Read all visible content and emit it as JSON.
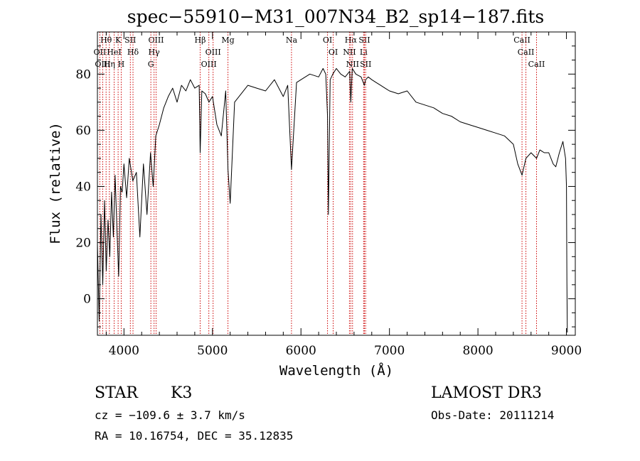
{
  "chart_data": {
    "type": "line",
    "title": "spec−55910−M31_007N34_B2_sp14−187.fits",
    "xlabel": "Wavelength (Å)",
    "ylabel": "Flux (relative)",
    "xlim": [
      3700,
      9100
    ],
    "ylim": [
      -13,
      95
    ],
    "x_ticks": [
      4000,
      5000,
      6000,
      7000,
      8000,
      9000
    ],
    "y_ticks": [
      0,
      20,
      40,
      60,
      80
    ],
    "grid": false,
    "line_color": "#000000",
    "marker_color": "#cc0000",
    "series": [
      {
        "x": [
          3700,
          3720,
          3740,
          3760,
          3780,
          3800,
          3820,
          3840,
          3860,
          3880,
          3900,
          3920,
          3940,
          3960,
          3980,
          4000,
          4030,
          4060,
          4100,
          4140,
          4180,
          4220,
          4260,
          4300,
          4330,
          4360,
          4400,
          4450,
          4500,
          4550,
          4600,
          4650,
          4700,
          4750,
          4800,
          4850,
          4861,
          4880,
          4920,
          4960,
          5000,
          5050,
          5100,
          5150,
          5175,
          5200,
          5250,
          5300,
          5400,
          5500,
          5600,
          5700,
          5800,
          5850,
          5893,
          5950,
          6000,
          6100,
          6200,
          6250,
          6280,
          6300,
          6310,
          6330,
          6360,
          6400,
          6450,
          6500,
          6550,
          6563,
          6580,
          6620,
          6680,
          6717,
          6731,
          6760,
          6800,
          6850,
          6900,
          6950,
          7000,
          7100,
          7200,
          7300,
          7400,
          7500,
          7600,
          7700,
          7800,
          7900,
          8000,
          8100,
          8200,
          8300,
          8400,
          8450,
          8498,
          8542,
          8600,
          8662,
          8700,
          8750,
          8800,
          8850,
          8880,
          8920,
          8960,
          8990,
          9000,
          9005,
          9010
        ],
        "y": [
          20,
          -8,
          30,
          5,
          35,
          10,
          28,
          15,
          38,
          22,
          44,
          25,
          8,
          40,
          38,
          48,
          36,
          50,
          42,
          45,
          22,
          48,
          30,
          52,
          40,
          58,
          62,
          68,
          72,
          75,
          70,
          76,
          74,
          78,
          75,
          76,
          52,
          74,
          73,
          70,
          72,
          62,
          58,
          74,
          46,
          34,
          70,
          72,
          76,
          75,
          74,
          78,
          72,
          76,
          46,
          77,
          78,
          80,
          79,
          82,
          80,
          65,
          30,
          78,
          80,
          82,
          80,
          79,
          81,
          70,
          82,
          80,
          79,
          76,
          78,
          79,
          78,
          77,
          76,
          75,
          74,
          73,
          74,
          70,
          69,
          68,
          66,
          65,
          63,
          62,
          61,
          60,
          59,
          58,
          55,
          48,
          44,
          50,
          52,
          50,
          53,
          52,
          52,
          48,
          47,
          52,
          56,
          50,
          40,
          6,
          -12
        ]
      }
    ],
    "line_markers": [
      {
        "label": "Hθ",
        "x": 3798
      },
      {
        "label": "OII",
        "x": 3727
      },
      {
        "label": "OIII",
        "x": 3760
      },
      {
        "label": "HeI",
        "x": 3889
      },
      {
        "label": "Hη",
        "x": 3835
      },
      {
        "label": "K",
        "x": 3934
      },
      {
        "label": "H",
        "x": 3969
      },
      {
        "label": "SII",
        "x": 4072
      },
      {
        "label": "Hδ",
        "x": 4102
      },
      {
        "label": "OIII",
        "x": 4363
      },
      {
        "label": "Hγ",
        "x": 4340
      },
      {
        "label": "G",
        "x": 4304
      },
      {
        "label": "Hβ",
        "x": 4861
      },
      {
        "label": "OIII",
        "x": 5007
      },
      {
        "label": "OIII",
        "x": 4959
      },
      {
        "label": "Mg",
        "x": 5175
      },
      {
        "label": "Na",
        "x": 5893
      },
      {
        "label": "OI",
        "x": 6300
      },
      {
        "label": "OI",
        "x": 6364
      },
      {
        "label": "Hα",
        "x": 6563
      },
      {
        "label": "NII",
        "x": 6548
      },
      {
        "label": "NII",
        "x": 6583
      },
      {
        "label": "SII",
        "x": 6717
      },
      {
        "label": "Li",
        "x": 6708
      },
      {
        "label": "SII",
        "x": 6731
      },
      {
        "label": "CaII",
        "x": 8498
      },
      {
        "label": "CaII",
        "x": 8542
      },
      {
        "label": "CaII",
        "x": 8662
      }
    ]
  },
  "info": {
    "class": "STAR",
    "subclass": "K3",
    "survey": "LAMOST DR3",
    "cz": "cz = −109.6 ± 3.7 km/s",
    "obs_date": "Obs-Date: 20111214",
    "coords": "RA =  10.16754, DEC =  35.12835"
  }
}
